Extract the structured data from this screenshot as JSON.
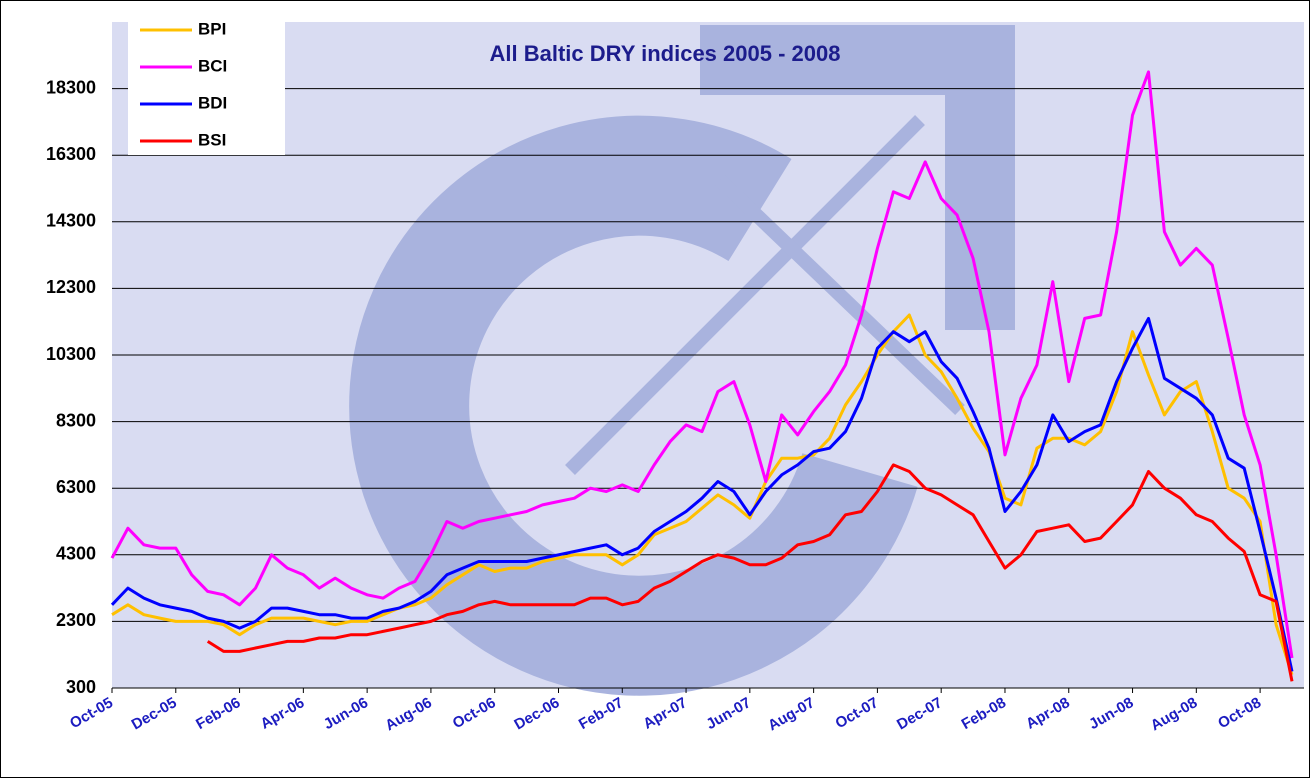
{
  "chart_data": {
    "type": "line",
    "title": "All Baltic DRY indices 2005 - 2008",
    "categories": [
      "Oct-05",
      null,
      null,
      null,
      "Dec-05",
      null,
      null,
      null,
      "Feb-06",
      null,
      null,
      null,
      "Apr-06",
      null,
      null,
      null,
      "Jun-06",
      null,
      null,
      null,
      "Aug-06",
      null,
      null,
      null,
      "Oct-06",
      null,
      null,
      null,
      "Dec-06",
      null,
      null,
      null,
      "Feb-07",
      null,
      null,
      null,
      "Apr-07",
      null,
      null,
      null,
      "Jun-07",
      null,
      null,
      null,
      "Aug-07",
      null,
      null,
      null,
      "Oct-07",
      null,
      null,
      null,
      "Dec-07",
      null,
      null,
      null,
      "Feb-08",
      null,
      null,
      null,
      "Apr-08",
      null,
      null,
      null,
      "Jun-08",
      null,
      null,
      null,
      "Aug-08",
      null,
      null,
      null,
      "Oct-08",
      null,
      null
    ],
    "series": [
      {
        "name": "BPI",
        "color": "#ffc000",
        "values": [
          2500,
          2800,
          2500,
          2400,
          2300,
          2300,
          2300,
          2200,
          1900,
          2200,
          2400,
          2400,
          2400,
          2300,
          2200,
          2300,
          2300,
          2500,
          2700,
          2800,
          3000,
          3400,
          3700,
          4000,
          3800,
          3900,
          3900,
          4100,
          4200,
          4300,
          4300,
          4300,
          4000,
          4300,
          4900,
          5100,
          5300,
          5700,
          6100,
          5800,
          5400,
          6500,
          7200,
          7200,
          7300,
          7800,
          8800,
          9500,
          10300,
          11000,
          11500,
          10300,
          9800,
          9000,
          8100,
          7400,
          6000,
          5800,
          7500,
          7800,
          7800,
          7600,
          8000,
          9200,
          11000,
          9700,
          8500,
          9200,
          9500,
          8000,
          6300,
          6000,
          5300,
          2200,
          700
        ]
      },
      {
        "name": "BCI",
        "color": "#ff00ff",
        "values": [
          4200,
          5100,
          4600,
          4500,
          4500,
          3700,
          3200,
          3100,
          2800,
          3300,
          4300,
          3900,
          3700,
          3300,
          3600,
          3300,
          3100,
          3000,
          3300,
          3500,
          4300,
          5300,
          5100,
          5300,
          5400,
          5500,
          5600,
          5800,
          5900,
          6000,
          6300,
          6200,
          6400,
          6200,
          7000,
          7700,
          8200,
          8000,
          9200,
          9500,
          8200,
          6500,
          8500,
          7900,
          8600,
          9200,
          10000,
          11500,
          13500,
          15200,
          15000,
          16100,
          15000,
          14500,
          13200,
          11000,
          7300,
          9000,
          10000,
          12500,
          9500,
          11400,
          11500,
          14000,
          17500,
          18800,
          14000,
          13000,
          13500,
          13000,
          10800,
          8500,
          7000,
          4300,
          1200
        ]
      },
      {
        "name": "BDI",
        "color": "#0000ff",
        "values": [
          2800,
          3300,
          3000,
          2800,
          2700,
          2600,
          2400,
          2300,
          2100,
          2300,
          2700,
          2700,
          2600,
          2500,
          2500,
          2400,
          2400,
          2600,
          2700,
          2900,
          3200,
          3700,
          3900,
          4100,
          4100,
          4100,
          4100,
          4200,
          4300,
          4400,
          4500,
          4600,
          4300,
          4500,
          5000,
          5300,
          5600,
          6000,
          6500,
          6200,
          5500,
          6200,
          6700,
          7000,
          7400,
          7500,
          8000,
          9000,
          10500,
          11000,
          10700,
          11000,
          10100,
          9600,
          8600,
          7500,
          5600,
          6200,
          7000,
          8500,
          7700,
          8000,
          8200,
          9500,
          10500,
          11400,
          9600,
          9300,
          9000,
          8500,
          7200,
          6900,
          5000,
          3000,
          800
        ]
      },
      {
        "name": "BSI",
        "color": "#ff0000",
        "values": [
          null,
          null,
          null,
          null,
          null,
          null,
          1700,
          1400,
          1400,
          1500,
          1600,
          1700,
          1700,
          1800,
          1800,
          1900,
          1900,
          2000,
          2100,
          2200,
          2300,
          2500,
          2600,
          2800,
          2900,
          2800,
          2800,
          2800,
          2800,
          2800,
          3000,
          3000,
          2800,
          2900,
          3300,
          3500,
          3800,
          4100,
          4300,
          4200,
          4000,
          4000,
          4200,
          4600,
          4700,
          4900,
          5500,
          5600,
          6200,
          7000,
          6800,
          6300,
          6100,
          5800,
          5500,
          4700,
          3900,
          4300,
          5000,
          5100,
          5200,
          4700,
          4800,
          5300,
          5800,
          6800,
          6300,
          6000,
          5500,
          5300,
          4800,
          4400,
          3100,
          2900,
          500
        ]
      }
    ],
    "ylim": [
      300,
      20300
    ],
    "yticks": [
      300,
      2300,
      4300,
      6300,
      8300,
      10300,
      12300,
      14300,
      16300,
      18300
    ],
    "grid": true,
    "legend": "upper left"
  }
}
